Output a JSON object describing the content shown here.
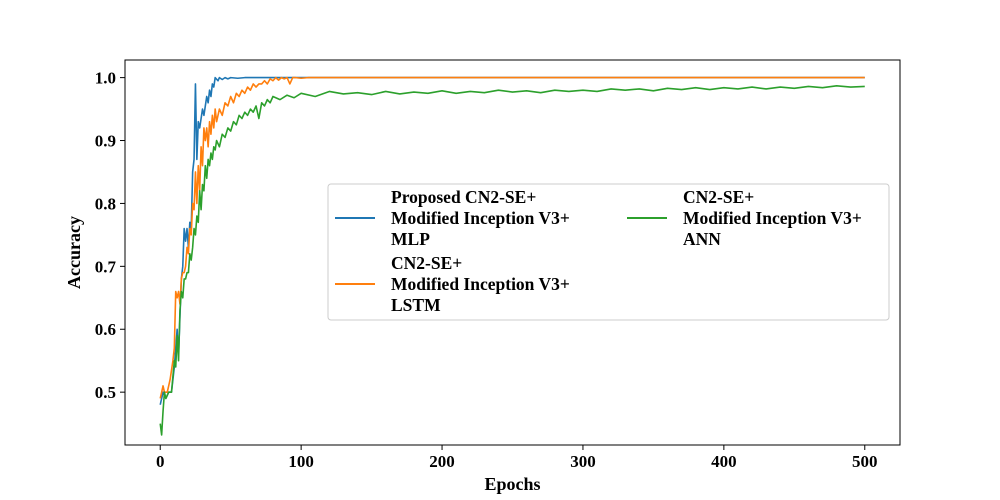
{
  "chart_data": {
    "type": "line",
    "title": "",
    "xlabel": "Epochs",
    "ylabel": "Accuracy",
    "xlim": [
      -25,
      525
    ],
    "ylim": [
      0.416,
      1.028
    ],
    "x_ticks": [
      0,
      100,
      200,
      300,
      400,
      500
    ],
    "y_ticks": [
      0.5,
      0.6,
      0.7,
      0.8,
      0.9,
      1.0
    ],
    "x_tick_labels": [
      "0",
      "100",
      "200",
      "300",
      "400",
      "500"
    ],
    "y_tick_labels": [
      "0.5",
      "0.6",
      "0.7",
      "0.8",
      "0.9",
      "1.0"
    ],
    "grid": false,
    "legend_placement": "center-right",
    "series": [
      {
        "name": "Proposed CN2-SE+ Modified Inception V3+ MLP",
        "label_lines": [
          "Proposed CN2-SE+",
          "Modified Inception V3+",
          "MLP"
        ],
        "color": "#1f77b4",
        "points": [
          [
            0,
            0.48
          ],
          [
            2,
            0.5
          ],
          [
            4,
            0.49
          ],
          [
            6,
            0.5
          ],
          [
            8,
            0.5
          ],
          [
            10,
            0.54
          ],
          [
            12,
            0.6
          ],
          [
            13,
            0.56
          ],
          [
            15,
            0.68
          ],
          [
            16,
            0.7
          ],
          [
            17,
            0.76
          ],
          [
            18,
            0.74
          ],
          [
            19,
            0.76
          ],
          [
            20,
            0.73
          ],
          [
            21,
            0.77
          ],
          [
            22,
            0.76
          ],
          [
            23,
            0.85
          ],
          [
            24,
            0.87
          ],
          [
            25,
            0.99
          ],
          [
            26,
            0.87
          ],
          [
            27,
            0.93
          ],
          [
            28,
            0.92
          ],
          [
            30,
            0.95
          ],
          [
            31,
            0.94
          ],
          [
            33,
            0.97
          ],
          [
            34,
            0.96
          ],
          [
            35,
            0.98
          ],
          [
            36,
            0.97
          ],
          [
            37,
            0.99
          ],
          [
            38,
            0.985
          ],
          [
            39,
            1.0
          ],
          [
            41,
            0.995
          ],
          [
            42,
            1.0
          ],
          [
            44,
            0.997
          ],
          [
            46,
            1.0
          ],
          [
            48,
            0.998
          ],
          [
            50,
            1.0
          ],
          [
            55,
            0.999
          ],
          [
            60,
            1.0
          ],
          [
            500,
            1.0
          ]
        ]
      },
      {
        "name": "CN2-SE+ Modified Inception V3+ LSTM",
        "label_lines": [
          "CN2-SE+",
          "Modified Inception V3+",
          "LSTM"
        ],
        "color": "#ff7f0e",
        "points": [
          [
            0,
            0.49
          ],
          [
            1,
            0.5
          ],
          [
            2,
            0.51
          ],
          [
            3,
            0.5
          ],
          [
            5,
            0.5
          ],
          [
            7,
            0.52
          ],
          [
            9,
            0.55
          ],
          [
            10,
            0.57
          ],
          [
            11,
            0.66
          ],
          [
            12,
            0.65
          ],
          [
            13,
            0.66
          ],
          [
            14,
            0.64
          ],
          [
            15,
            0.68
          ],
          [
            16,
            0.69
          ],
          [
            17,
            0.69
          ],
          [
            18,
            0.7
          ],
          [
            19,
            0.73
          ],
          [
            20,
            0.72
          ],
          [
            21,
            0.76
          ],
          [
            22,
            0.75
          ],
          [
            23,
            0.8
          ],
          [
            24,
            0.79
          ],
          [
            25,
            0.85
          ],
          [
            26,
            0.8
          ],
          [
            27,
            0.86
          ],
          [
            28,
            0.82
          ],
          [
            29,
            0.89
          ],
          [
            30,
            0.86
          ],
          [
            31,
            0.92
          ],
          [
            32,
            0.9
          ],
          [
            33,
            0.92
          ],
          [
            34,
            0.89
          ],
          [
            35,
            0.93
          ],
          [
            36,
            0.91
          ],
          [
            37,
            0.94
          ],
          [
            38,
            0.92
          ],
          [
            39,
            0.95
          ],
          [
            40,
            0.93
          ],
          [
            42,
            0.95
          ],
          [
            44,
            0.94
          ],
          [
            46,
            0.96
          ],
          [
            48,
            0.955
          ],
          [
            50,
            0.97
          ],
          [
            52,
            0.96
          ],
          [
            54,
            0.975
          ],
          [
            56,
            0.97
          ],
          [
            58,
            0.98
          ],
          [
            60,
            0.975
          ],
          [
            62,
            0.985
          ],
          [
            64,
            0.98
          ],
          [
            66,
            0.99
          ],
          [
            68,
            0.985
          ],
          [
            70,
            0.99
          ],
          [
            72,
            0.99
          ],
          [
            74,
            0.995
          ],
          [
            76,
            0.99
          ],
          [
            78,
            0.998
          ],
          [
            80,
            0.995
          ],
          [
            82,
            1.0
          ],
          [
            84,
            0.996
          ],
          [
            86,
            1.0
          ],
          [
            88,
            0.998
          ],
          [
            90,
            1.0
          ],
          [
            92,
            0.99
          ],
          [
            94,
            1.0
          ],
          [
            96,
            1.0
          ],
          [
            100,
            0.999
          ],
          [
            105,
            1.0
          ],
          [
            110,
            1.0
          ],
          [
            500,
            1.0
          ]
        ]
      },
      {
        "name": "CN2-SE+ Modified Inception V3+ ANN",
        "label_lines": [
          "CN2-SE+",
          "Modified Inception V3+",
          "ANN"
        ],
        "color": "#2ca02c",
        "points": [
          [
            0,
            0.45
          ],
          [
            1,
            0.432
          ],
          [
            2,
            0.47
          ],
          [
            3,
            0.5
          ],
          [
            4,
            0.49
          ],
          [
            6,
            0.5
          ],
          [
            8,
            0.5
          ],
          [
            10,
            0.55
          ],
          [
            11,
            0.54
          ],
          [
            12,
            0.59
          ],
          [
            13,
            0.55
          ],
          [
            14,
            0.63
          ],
          [
            15,
            0.66
          ],
          [
            16,
            0.65
          ],
          [
            17,
            0.68
          ],
          [
            18,
            0.68
          ],
          [
            19,
            0.69
          ],
          [
            20,
            0.69
          ],
          [
            21,
            0.72
          ],
          [
            22,
            0.71
          ],
          [
            23,
            0.73
          ],
          [
            24,
            0.76
          ],
          [
            25,
            0.75
          ],
          [
            26,
            0.78
          ],
          [
            27,
            0.77
          ],
          [
            28,
            0.82
          ],
          [
            29,
            0.79
          ],
          [
            30,
            0.83
          ],
          [
            31,
            0.82
          ],
          [
            32,
            0.86
          ],
          [
            33,
            0.84
          ],
          [
            34,
            0.87
          ],
          [
            35,
            0.86
          ],
          [
            36,
            0.88
          ],
          [
            37,
            0.87
          ],
          [
            38,
            0.89
          ],
          [
            39,
            0.885
          ],
          [
            40,
            0.9
          ],
          [
            42,
            0.89
          ],
          [
            44,
            0.91
          ],
          [
            46,
            0.905
          ],
          [
            48,
            0.92
          ],
          [
            50,
            0.915
          ],
          [
            52,
            0.93
          ],
          [
            54,
            0.925
          ],
          [
            56,
            0.94
          ],
          [
            58,
            0.935
          ],
          [
            60,
            0.945
          ],
          [
            62,
            0.94
          ],
          [
            64,
            0.95
          ],
          [
            66,
            0.945
          ],
          [
            68,
            0.955
          ],
          [
            70,
            0.935
          ],
          [
            72,
            0.96
          ],
          [
            74,
            0.955
          ],
          [
            76,
            0.965
          ],
          [
            78,
            0.96
          ],
          [
            80,
            0.97
          ],
          [
            85,
            0.965
          ],
          [
            90,
            0.972
          ],
          [
            95,
            0.968
          ],
          [
            100,
            0.975
          ],
          [
            110,
            0.97
          ],
          [
            120,
            0.978
          ],
          [
            130,
            0.974
          ],
          [
            140,
            0.976
          ],
          [
            150,
            0.973
          ],
          [
            160,
            0.978
          ],
          [
            170,
            0.974
          ],
          [
            180,
            0.977
          ],
          [
            190,
            0.975
          ],
          [
            200,
            0.979
          ],
          [
            210,
            0.975
          ],
          [
            220,
            0.978
          ],
          [
            230,
            0.976
          ],
          [
            240,
            0.98
          ],
          [
            250,
            0.977
          ],
          [
            260,
            0.979
          ],
          [
            270,
            0.976
          ],
          [
            280,
            0.98
          ],
          [
            290,
            0.978
          ],
          [
            300,
            0.98
          ],
          [
            310,
            0.978
          ],
          [
            320,
            0.982
          ],
          [
            330,
            0.98
          ],
          [
            340,
            0.982
          ],
          [
            350,
            0.979
          ],
          [
            360,
            0.983
          ],
          [
            370,
            0.981
          ],
          [
            380,
            0.984
          ],
          [
            390,
            0.981
          ],
          [
            400,
            0.984
          ],
          [
            410,
            0.982
          ],
          [
            420,
            0.985
          ],
          [
            430,
            0.982
          ],
          [
            440,
            0.985
          ],
          [
            450,
            0.983
          ],
          [
            460,
            0.986
          ],
          [
            470,
            0.984
          ],
          [
            480,
            0.987
          ],
          [
            490,
            0.985
          ],
          [
            500,
            0.986
          ]
        ]
      }
    ]
  }
}
